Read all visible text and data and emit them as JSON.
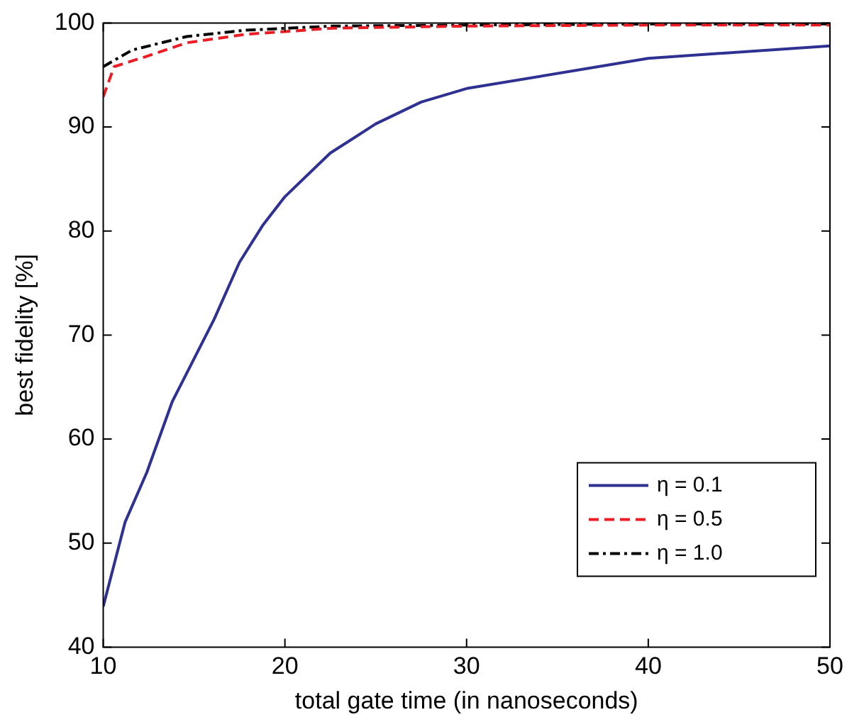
{
  "chart_data": {
    "type": "line",
    "xlabel": "total gate time (in nanoseconds)",
    "ylabel": "best fidelity [%]",
    "xlim": [
      10,
      50
    ],
    "xticks": [
      10,
      20,
      30,
      40,
      50
    ],
    "ylim": [
      40,
      100
    ],
    "yticks": [
      40,
      50,
      60,
      70,
      80,
      90,
      100
    ],
    "grid": false,
    "legend": "bottom right",
    "marker": "none",
    "series": [
      {
        "name": "η = 0.1",
        "color": "#2e3192",
        "line_style": "solid",
        "x": [
          10,
          11.2,
          12.4,
          13.8,
          16.1,
          17.5,
          18.8,
          20,
          22.5,
          25,
          27.5,
          30,
          40,
          50
        ],
        "values": [
          43.9,
          52,
          56.8,
          63.6,
          71.5,
          77,
          80.6,
          83.3,
          87.5,
          90.3,
          92.4,
          93.7,
          96.6,
          97.8
        ]
      },
      {
        "name": "η = 0.5",
        "color": "#ed1c24",
        "line_style": "dashed",
        "x": [
          10,
          10.6,
          12.4,
          14.6,
          17.8,
          22.6,
          30,
          40,
          50
        ],
        "values": [
          92.9,
          95.8,
          96.8,
          98.1,
          98.9,
          99.5,
          99.7,
          99.8,
          99.8
        ]
      },
      {
        "name": "η = 1.0",
        "color": "#000000",
        "line_style": "dashdot",
        "x": [
          10,
          11.6,
          14.6,
          17.8,
          22.6,
          30,
          40,
          50
        ],
        "values": [
          95.8,
          97.4,
          98.7,
          99.3,
          99.7,
          99.8,
          99.9,
          99.9
        ]
      }
    ]
  }
}
